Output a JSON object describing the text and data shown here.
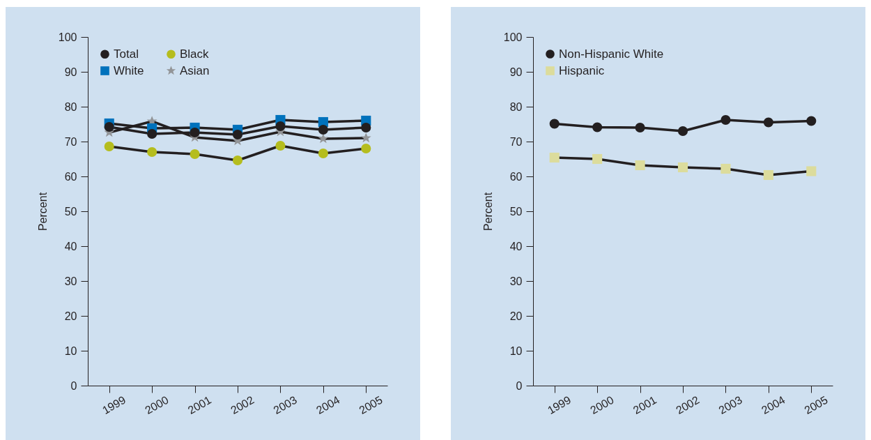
{
  "chart_data": [
    {
      "type": "line",
      "ylabel": "Percent",
      "categories": [
        "1999",
        "2000",
        "2001",
        "2002",
        "2003",
        "2004",
        "2005"
      ],
      "ylim": [
        0,
        100
      ],
      "yticks": [
        0,
        10,
        20,
        30,
        40,
        50,
        60,
        70,
        80,
        90,
        100
      ],
      "grid": false,
      "legend": "top left",
      "series": [
        {
          "name": "Total",
          "color": "#231f20",
          "marker": "circle",
          "values": [
            74.2,
            72.2,
            72.6,
            72,
            74.4,
            73.4,
            74
          ]
        },
        {
          "name": "White",
          "color": "#0072bc",
          "marker": "square",
          "values": [
            75.2,
            73.8,
            74,
            73.4,
            76.2,
            75.6,
            76
          ]
        },
        {
          "name": "Black",
          "color": "#b5bd1e",
          "marker": "circle",
          "values": [
            68.6,
            67,
            66.4,
            64.6,
            68.8,
            66.6,
            68
          ]
        },
        {
          "name": "Asian",
          "color": "#939598",
          "marker": "star",
          "values": [
            72.6,
            75.8,
            71.2,
            70.2,
            72.8,
            70.8,
            71
          ]
        }
      ]
    },
    {
      "type": "line",
      "ylabel": "Percent",
      "categories": [
        "1999",
        "2000",
        "2001",
        "2002",
        "2003",
        "2004",
        "2005"
      ],
      "ylim": [
        0,
        100
      ],
      "yticks": [
        0,
        10,
        20,
        30,
        40,
        50,
        60,
        70,
        80,
        90,
        100
      ],
      "grid": false,
      "legend": "top left",
      "series": [
        {
          "name": "Non-Hispanic White",
          "color": "#231f20",
          "marker": "circle",
          "values": [
            75.1,
            74.1,
            74,
            73,
            76.2,
            75.5,
            75.9
          ]
        },
        {
          "name": "Hispanic",
          "color": "#dcdc9c",
          "marker": "square",
          "values": [
            65.4,
            65,
            63.2,
            62.6,
            62.2,
            60.4,
            61.5
          ]
        }
      ]
    }
  ]
}
